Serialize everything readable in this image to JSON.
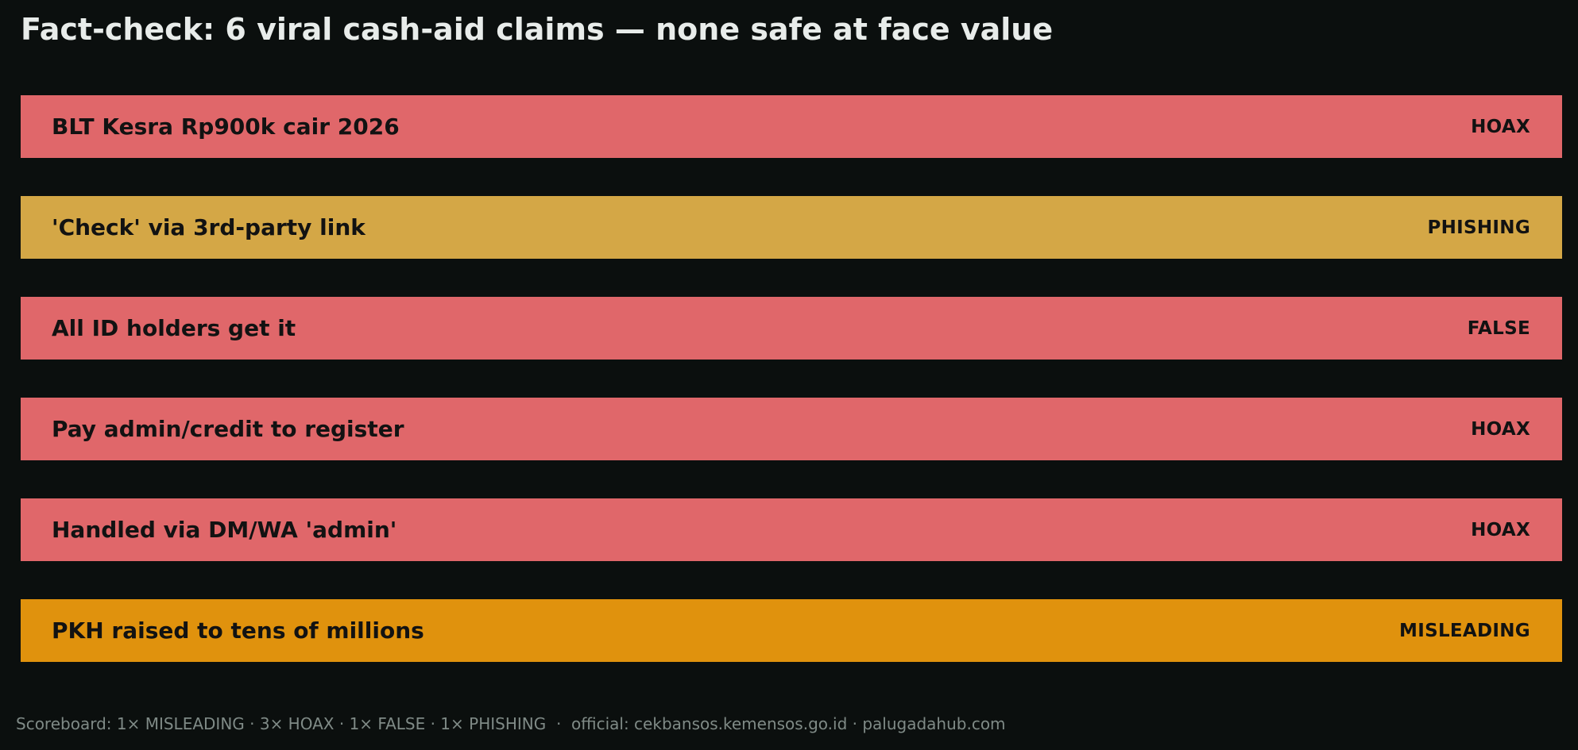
{
  "title": "Fact-check: 6 viral cash-aid claims — none safe at face value",
  "colors": {
    "background": "#0b0f0e",
    "HOAX": "#e0676a",
    "FALSE": "#e0676a",
    "PHISHING": "#d4a746",
    "MISLEADING": "#e0920d"
  },
  "chart_data": {
    "type": "table",
    "title": "Fact-check: 6 viral cash-aid claims — none safe at face value",
    "columns": [
      "claim",
      "verdict"
    ],
    "rows": [
      {
        "claim": "BLT Kesra Rp900k cair 2026",
        "verdict": "HOAX"
      },
      {
        "claim": "'Check' via 3rd-party link",
        "verdict": "PHISHING"
      },
      {
        "claim": "All ID holders get it",
        "verdict": "FALSE"
      },
      {
        "claim": "Pay admin/credit to register",
        "verdict": "HOAX"
      },
      {
        "claim": "Handled via DM/WA 'admin'",
        "verdict": "HOAX"
      },
      {
        "claim": "PKH raised to tens of millions",
        "verdict": "MISLEADING"
      }
    ]
  },
  "footer": "Scoreboard: 1× MISLEADING · 3× HOAX · 1× FALSE · 1× PHISHING  ·  official: cekbansos.kemensos.go.id · palugadahub.com"
}
